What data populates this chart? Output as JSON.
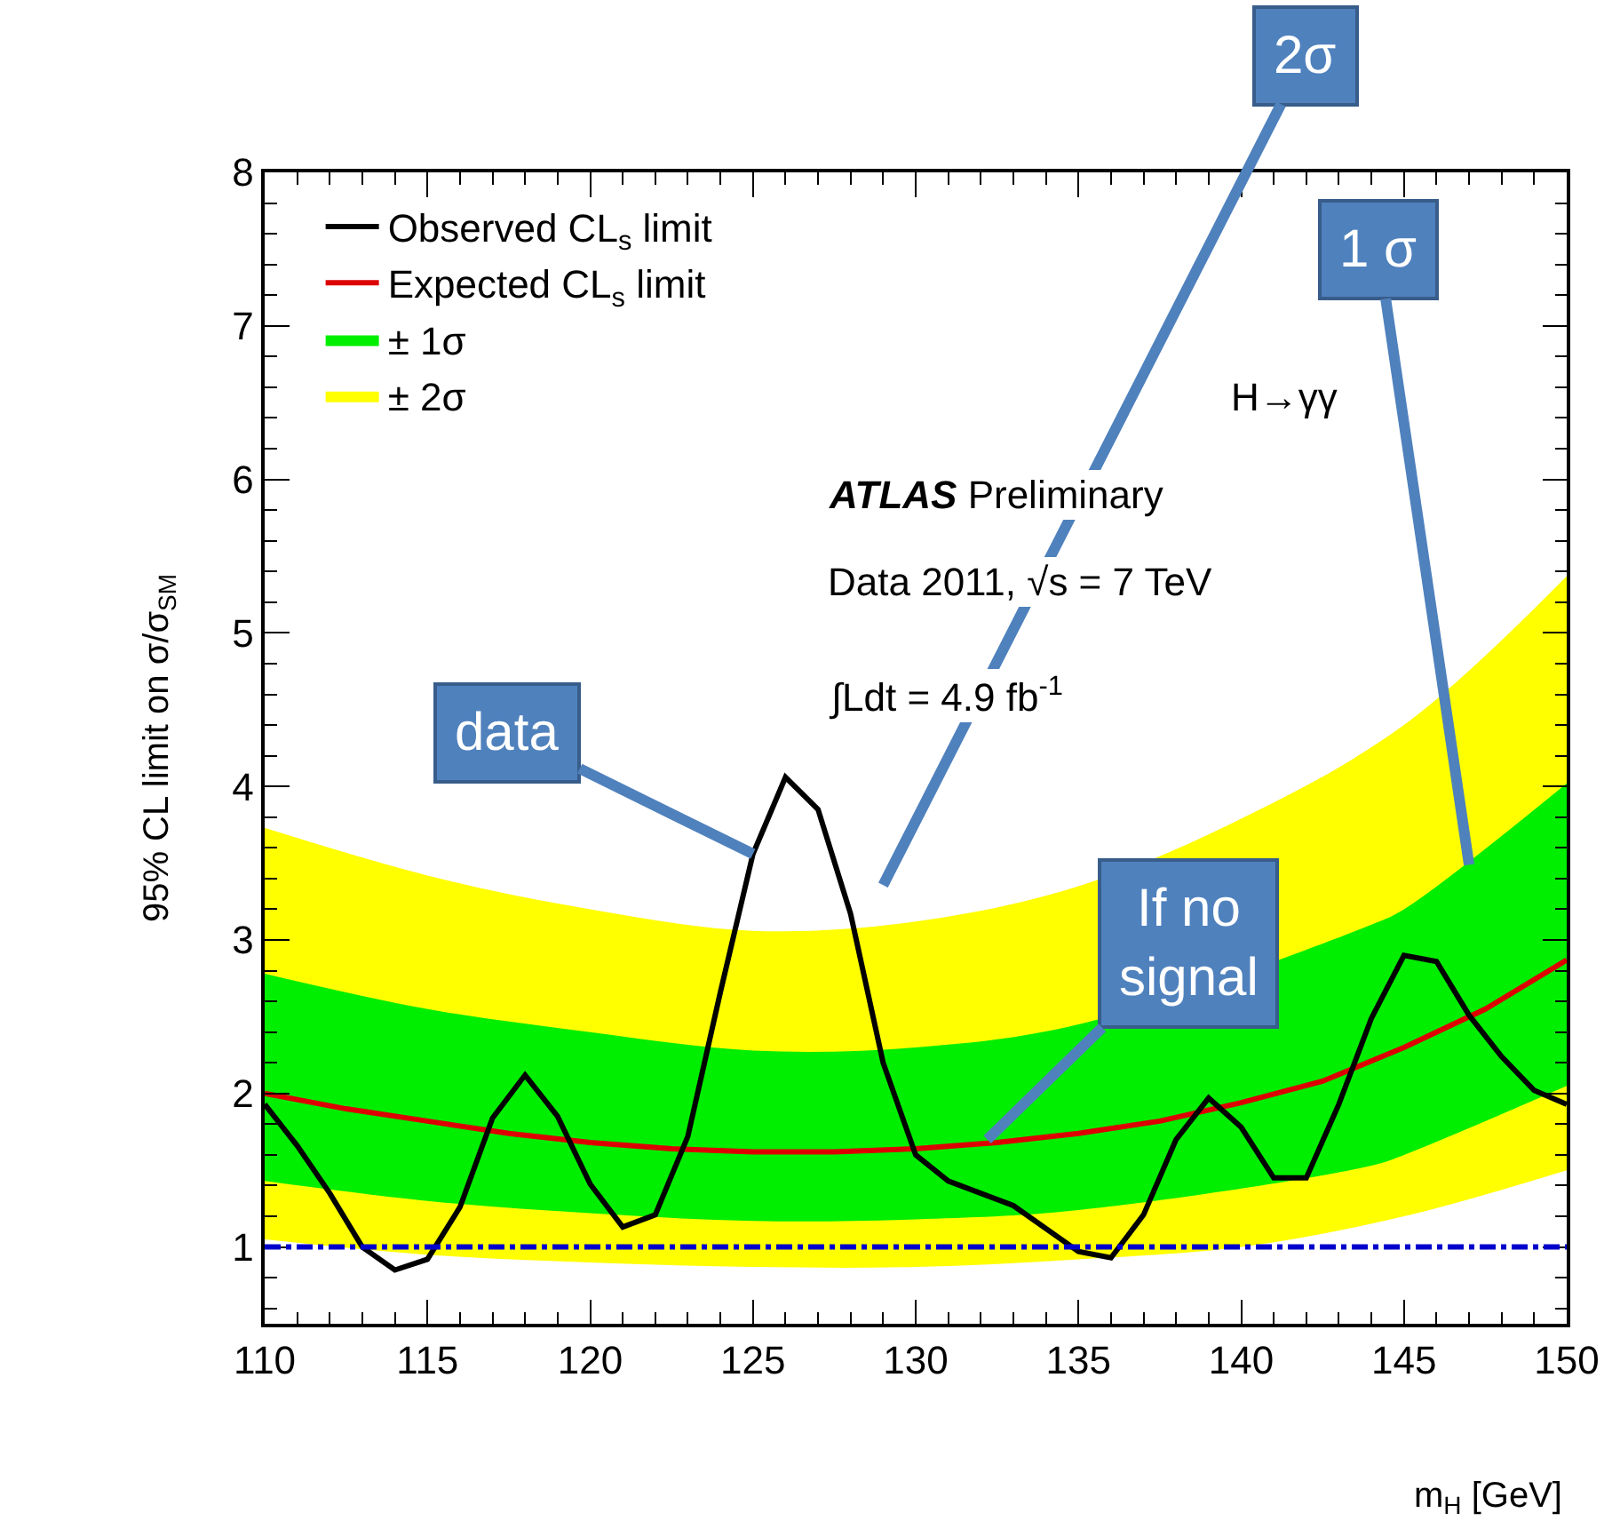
{
  "chart_data": {
    "type": "line",
    "xlabel": "m$_{H}$ [GeV]",
    "ylabel": "95% CL limit on σ/σ$_{SM}$",
    "xlim": [
      110,
      150
    ],
    "xticks": [
      110,
      115,
      120,
      125,
      130,
      135,
      140,
      145,
      150
    ],
    "ylim": [
      0.5,
      8
    ],
    "yticks": [
      1,
      2,
      3,
      4,
      5,
      6,
      7,
      8
    ],
    "legend": "top left",
    "series": [
      {
        "name": "± 2σ",
        "type": "area",
        "color": "#ffff00",
        "x": [
          110,
          115,
          120,
          125,
          130,
          135,
          140,
          145,
          150
        ],
        "values": [
          null,
          null,
          null,
          null,
          null,
          null,
          null,
          null,
          null
        ],
        "lower": [
          1.05,
          0.95,
          0.9,
          0.87,
          0.87,
          0.92,
          1.0,
          1.2,
          1.5
        ],
        "upper": [
          3.73,
          3.42,
          3.2,
          3.06,
          3.12,
          3.35,
          3.79,
          4.4,
          5.37
        ]
      },
      {
        "name": "± 1σ",
        "type": "area",
        "color": "#00ee00",
        "x": [
          110,
          115,
          120,
          125,
          130,
          135,
          144,
          145,
          150
        ],
        "values": [
          null,
          null,
          null,
          null,
          null,
          null,
          null,
          null,
          null
        ],
        "lower": [
          1.43,
          1.3,
          1.22,
          1.17,
          1.18,
          1.24,
          1.53,
          1.6,
          2.05
        ],
        "upper": [
          2.78,
          2.55,
          2.4,
          2.28,
          2.3,
          2.45,
          3.1,
          3.2,
          4.02
        ]
      },
      {
        "name": "Expected CL$_{s}$ limit",
        "color": "#dd0000",
        "x": [
          110,
          112.5,
          115,
          117.5,
          120,
          122.5,
          125,
          127.5,
          130,
          132.5,
          135,
          137.5,
          140,
          142.5,
          145,
          147.5,
          150
        ],
        "values": [
          2.0,
          1.9,
          1.82,
          1.74,
          1.68,
          1.64,
          1.62,
          1.62,
          1.64,
          1.68,
          1.74,
          1.82,
          1.94,
          2.08,
          2.3,
          2.55,
          2.87
        ]
      },
      {
        "name": "Observed CL$_{s}$ limit",
        "color": "#000000",
        "x": [
          110,
          111,
          112,
          113,
          114,
          115,
          116,
          117,
          118,
          119,
          120,
          121,
          122,
          123,
          124,
          125,
          126,
          127,
          128,
          129,
          130,
          131,
          133,
          135,
          136,
          137,
          138,
          139,
          140,
          141,
          142,
          143,
          144,
          145,
          146,
          147,
          148,
          149,
          150
        ],
        "values": [
          1.93,
          1.66,
          1.35,
          1.0,
          0.85,
          0.92,
          1.26,
          1.84,
          2.12,
          1.85,
          1.41,
          1.13,
          1.21,
          1.72,
          2.66,
          3.56,
          4.06,
          3.85,
          3.17,
          2.2,
          1.6,
          1.43,
          1.27,
          0.97,
          0.93,
          1.21,
          1.7,
          1.97,
          1.78,
          1.45,
          1.45,
          1.93,
          2.49,
          2.9,
          2.86,
          2.51,
          2.24,
          2.02,
          1.93
        ]
      }
    ],
    "ref_lines": [
      {
        "axis": "y",
        "value": 1,
        "color": "#0000cc",
        "line_style": "dashed"
      }
    ],
    "annotations": [
      "H→γγ",
      "ATLAS Preliminary",
      "Data 2011, √s = 7 TeV",
      "∫Ldt = 4.9 fb$^{-1}$",
      {
        "text": "data",
        "x": 125,
        "y": 3.56
      },
      "2σ",
      {
        "text": "1 σ",
        "x": 147,
        "y": 3.49
      },
      {
        "text": "If no signal",
        "x": 132.2,
        "y": 1.7
      }
    ]
  }
}
